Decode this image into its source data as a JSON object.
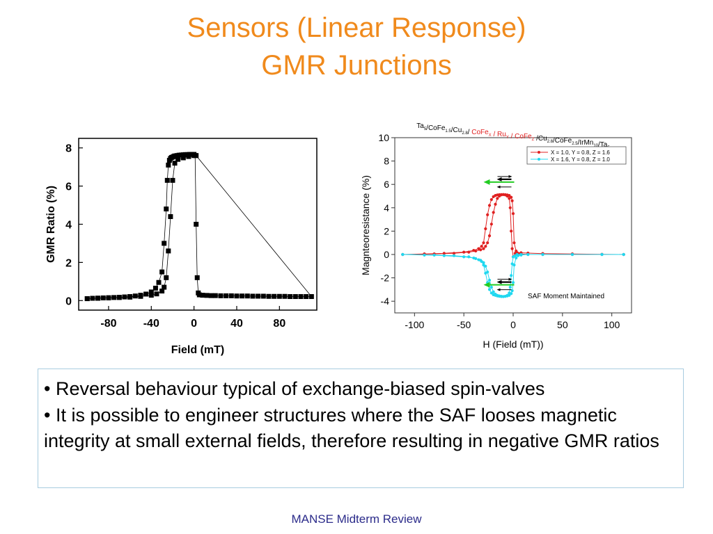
{
  "slide": {
    "title_line1": "Sensors (Linear Response)",
    "title_line2": "GMR Junctions",
    "bullets": [
      "• Reversal behaviour typical of exchange-biased spin-valves",
      "• It is possible to engineer structures where the SAF looses magnetic integrity at small external fields, therefore resulting in negative GMR ratios"
    ],
    "footer": "MANSE Midterm Review"
  },
  "colors": {
    "title": "#f08a1c",
    "footer": "#2b2b8a",
    "series_red": "#e02020",
    "series_cyan": "#20d8f0",
    "arrow_green": "#22cc22"
  },
  "chart_data": [
    {
      "type": "scatter",
      "xlabel": "Field (mT)",
      "ylabel": "GMR Ratio (%)",
      "xlim": [
        -108,
        115
      ],
      "ylim": [
        -0.5,
        8.5
      ],
      "xticks": [
        -80,
        -40,
        0,
        40,
        80
      ],
      "yticks": [
        0,
        2,
        4,
        6,
        8
      ],
      "grid": false,
      "series": [
        {
          "marker": "square",
          "color": "#000000",
          "x": [
            -100,
            -95,
            -90,
            -85,
            -80,
            -75,
            -70,
            -65,
            -60,
            -55,
            -50,
            -45,
            -40,
            -36,
            -33,
            -30,
            -28,
            -26,
            -25,
            -24,
            -23,
            -22,
            -21,
            -20,
            -19,
            -18,
            -16,
            -14,
            -12,
            -10,
            -8,
            -6,
            -4,
            -2,
            0,
            1,
            2,
            3,
            4,
            5,
            8,
            12,
            16,
            20,
            25,
            30,
            35,
            40,
            45,
            50,
            55,
            60,
            65,
            70,
            75,
            80,
            85,
            90,
            95,
            100,
            105,
            110,
            2,
            0,
            -5,
            -10,
            -15,
            -18,
            -20,
            -22,
            -24,
            -26,
            -28,
            -30,
            -35,
            -40,
            -50,
            -60,
            -70,
            -80,
            -90,
            -100
          ],
          "y": [
            0.1,
            0.12,
            0.13,
            0.14,
            0.15,
            0.16,
            0.17,
            0.19,
            0.21,
            0.24,
            0.28,
            0.34,
            0.45,
            0.65,
            0.95,
            1.5,
            3.0,
            4.8,
            6.3,
            7.1,
            7.35,
            7.45,
            7.5,
            7.52,
            7.55,
            7.58,
            7.6,
            7.62,
            7.63,
            7.64,
            7.65,
            7.65,
            7.66,
            7.66,
            7.66,
            7.6,
            4.0,
            1.2,
            0.4,
            0.3,
            0.28,
            0.27,
            0.26,
            0.26,
            0.25,
            0.25,
            0.25,
            0.24,
            0.24,
            0.24,
            0.23,
            0.23,
            0.23,
            0.22,
            0.22,
            0.22,
            0.22,
            0.21,
            0.21,
            0.21,
            0.21,
            0.21,
            7.6,
            7.6,
            7.55,
            7.48,
            7.4,
            7.2,
            6.3,
            4.4,
            2.6,
            1.2,
            0.7,
            0.5,
            0.35,
            0.28,
            0.22,
            0.18,
            0.16,
            0.14,
            0.12,
            0.1
          ]
        }
      ]
    },
    {
      "type": "line",
      "title": "Ta5/CoFe1.5/Cu2.8/ CoFeX / RuY / CoFeZ /Cu2.8/CoFe2.5/IrMn10/Ta5",
      "xlabel": "H (Field (mT))",
      "ylabel": "Magnteoresistance (%)",
      "xlim": [
        -120,
        120
      ],
      "ylim": [
        -5,
        10
      ],
      "xticks": [
        -100,
        -50,
        0,
        50,
        100
      ],
      "yticks": [
        -4,
        -2,
        0,
        2,
        4,
        6,
        8,
        10
      ],
      "grid": false,
      "legend_position": "top-right",
      "annotation": "SAF Moment Maintained",
      "series": [
        {
          "name": "X = 1.0, Y = 0.8, Z = 1.6",
          "color": "#e02020",
          "x": [
            -112,
            -90,
            -70,
            -50,
            -40,
            -35,
            -32,
            -30,
            -28,
            -26,
            -24,
            -22,
            -20,
            -18,
            -16,
            -14,
            -12,
            -10,
            -8,
            -6,
            -4,
            -3,
            -2,
            -1,
            0,
            2,
            4,
            8,
            15,
            30,
            60,
            90,
            112,
            112,
            90,
            60,
            30,
            15,
            8,
            5,
            3,
            1,
            0,
            -1,
            -2,
            -4,
            -6,
            -8,
            -10,
            -12,
            -14,
            -16,
            -18,
            -20,
            -22,
            -24,
            -26,
            -28,
            -30,
            -33,
            -38,
            -45,
            -60,
            -80,
            -112
          ],
          "y": [
            0.0,
            0.05,
            0.1,
            0.2,
            0.35,
            0.5,
            0.7,
            1.0,
            2.2,
            3.4,
            4.2,
            4.7,
            4.95,
            5.05,
            5.1,
            5.12,
            5.13,
            5.13,
            5.1,
            5.0,
            4.8,
            4.0,
            2.0,
            0.5,
            -0.2,
            0.1,
            0.15,
            0.15,
            0.12,
            0.08,
            0.05,
            0.02,
            0.0,
            0.0,
            0.0,
            0.0,
            0.0,
            0.0,
            0.05,
            0.1,
            0.3,
            1.0,
            3.5,
            4.6,
            4.9,
            5.05,
            5.1,
            5.12,
            5.13,
            5.1,
            5.0,
            4.8,
            4.3,
            3.6,
            2.6,
            1.6,
            1.0,
            0.7,
            0.5,
            0.4,
            0.3,
            0.2,
            0.1,
            0.05,
            0.0
          ]
        },
        {
          "name": "X = 1.6, Y = 0.8, Z = 1.0",
          "color": "#20d8f0",
          "x": [
            -112,
            -90,
            -70,
            -50,
            -40,
            -35,
            -32,
            -30,
            -28,
            -26,
            -24,
            -22,
            -20,
            -18,
            -16,
            -14,
            -12,
            -10,
            -8,
            -6,
            -4,
            -3,
            -2,
            -1,
            0,
            2,
            4,
            8,
            15,
            30,
            60,
            90,
            112,
            112,
            90,
            60,
            30,
            15,
            8,
            5,
            3,
            1,
            0,
            -1,
            -2,
            -4,
            -6,
            -8,
            -10,
            -12,
            -14,
            -16,
            -18,
            -20,
            -22,
            -24,
            -26,
            -28,
            -30,
            -33,
            -38,
            -45,
            -60,
            -80,
            -112
          ],
          "y": [
            0.0,
            -0.05,
            -0.1,
            -0.2,
            -0.3,
            -0.45,
            -0.6,
            -0.9,
            -1.6,
            -2.4,
            -3.0,
            -3.3,
            -3.45,
            -3.5,
            -3.55,
            -3.58,
            -3.6,
            -3.6,
            -3.58,
            -3.5,
            -3.3,
            -2.8,
            -1.8,
            -0.8,
            -0.2,
            -0.1,
            0.0,
            0.0,
            0.0,
            0.0,
            0.0,
            0.0,
            0.0,
            0.0,
            0.0,
            0.0,
            0.0,
            0.0,
            -0.05,
            -0.1,
            -0.3,
            -0.9,
            -2.4,
            -3.1,
            -3.35,
            -3.5,
            -3.55,
            -3.58,
            -3.6,
            -3.58,
            -3.55,
            -3.5,
            -3.4,
            -3.2,
            -2.8,
            -2.2,
            -1.5,
            -1.0,
            -0.7,
            -0.5,
            -0.35,
            -0.2,
            -0.1,
            -0.05,
            0.0
          ]
        }
      ]
    }
  ]
}
